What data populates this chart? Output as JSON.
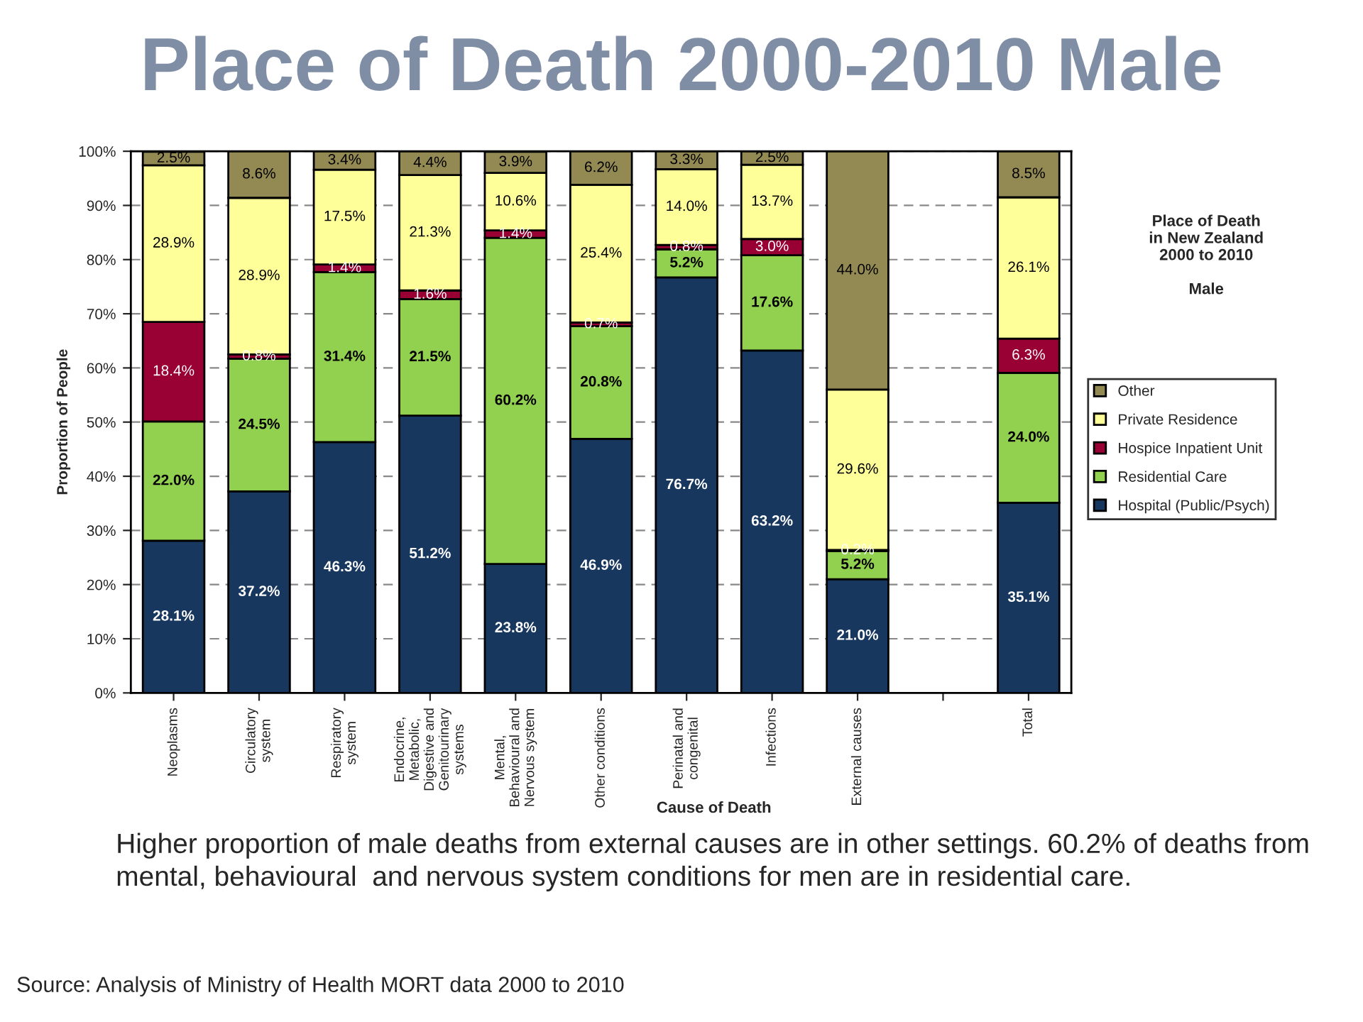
{
  "chart_data": {
    "type": "bar",
    "stacked": true,
    "title": "Place of Death 2000-2010 Male",
    "xlabel": "Cause of Death",
    "ylabel": "Proportion of People",
    "legend_title": "Place of Death\nin New Zealand\n2000 to 2010\n\nMale",
    "categories": [
      "Neoplasms",
      "Circulatory\nsystem",
      "Respiratory\nsystem",
      "Endocrine,\nMetabolic,\nDigestive and\nGenitourinary\nsystems",
      "Mental,\nBehavioural and\nNervous system",
      "Other conditions",
      "Perinatal and\ncongenital",
      "Infections",
      "External causes",
      null,
      "Total"
    ],
    "series": [
      {
        "name": "Hospital (Public/Psych)",
        "color": "#17375e",
        "values": [
          28.1,
          37.2,
          46.3,
          51.2,
          23.8,
          46.9,
          76.7,
          63.2,
          21.0,
          null,
          35.1
        ],
        "value_labels": [
          "28.1%",
          "37.2%",
          "46.3%",
          "51.2%",
          "23.8%",
          "46.9%",
          "76.7%",
          "63.2%",
          "21.0%",
          null,
          "35.1%"
        ]
      },
      {
        "name": "Residential Care",
        "color": "#92d050",
        "values": [
          22.0,
          24.5,
          31.4,
          21.5,
          60.2,
          20.8,
          5.2,
          17.6,
          5.2,
          null,
          24.0
        ],
        "value_labels": [
          "22.0%",
          "24.5%",
          "31.4%",
          "21.5%",
          "60.2%",
          "20.8%",
          "5.2%",
          "17.6%",
          "5.2%",
          null,
          "24.0%"
        ]
      },
      {
        "name": "Hospice Inpatient Unit",
        "color": "#990033",
        "values": [
          18.4,
          0.8,
          1.4,
          1.6,
          1.4,
          0.7,
          0.8,
          3.0,
          0.2,
          null,
          6.3
        ],
        "value_labels": [
          "18.4%",
          "0.8%",
          "1.4%",
          "1.6%",
          "1.4%",
          "0.7%",
          "0.8%",
          "3.0%",
          "0.2%",
          null,
          "6.3%"
        ]
      },
      {
        "name": "Private Residence",
        "color": "#ffff99",
        "values": [
          28.9,
          28.9,
          17.5,
          21.3,
          10.6,
          25.4,
          14.0,
          13.7,
          29.6,
          null,
          26.1
        ],
        "value_labels": [
          "28.9%",
          "28.9%",
          "17.5%",
          "21.3%",
          "10.6%",
          "25.4%",
          "14.0%",
          "13.7%",
          "29.6%",
          null,
          "26.1%"
        ]
      },
      {
        "name": "Other",
        "color": "#938953",
        "values": [
          2.5,
          8.6,
          3.4,
          4.4,
          3.9,
          6.2,
          3.3,
          2.5,
          44.0,
          null,
          8.5
        ],
        "value_labels": [
          "2.5%",
          "8.6%",
          "3.4%",
          "4.4%",
          "3.9%",
          "6.2%",
          "3.3%",
          "2.5%",
          "44.0%",
          null,
          "8.5%"
        ]
      }
    ],
    "ylim": [
      0,
      100
    ],
    "yticks": [
      {
        "value": 0,
        "label": "0%"
      },
      {
        "value": 10,
        "label": "10%"
      },
      {
        "value": 20,
        "label": "20%"
      },
      {
        "value": 30,
        "label": "30%"
      },
      {
        "value": 40,
        "label": "40%"
      },
      {
        "value": 50,
        "label": "50%"
      },
      {
        "value": 60,
        "label": "60%"
      },
      {
        "value": 70,
        "label": "70%"
      },
      {
        "value": 80,
        "label": "80%"
      },
      {
        "value": 90,
        "label": "90%"
      },
      {
        "value": 100,
        "label": "100%"
      }
    ],
    "grid": "y",
    "legend": "right",
    "annotations": [
      "Higher proportion of male deaths from external causes are in other settings. 60.2% of deaths from mental, behavioural  and nervous system conditions for men are in residential care.",
      "Source: Analysis of Ministry of Health MORT data 2000 to 2010"
    ]
  }
}
